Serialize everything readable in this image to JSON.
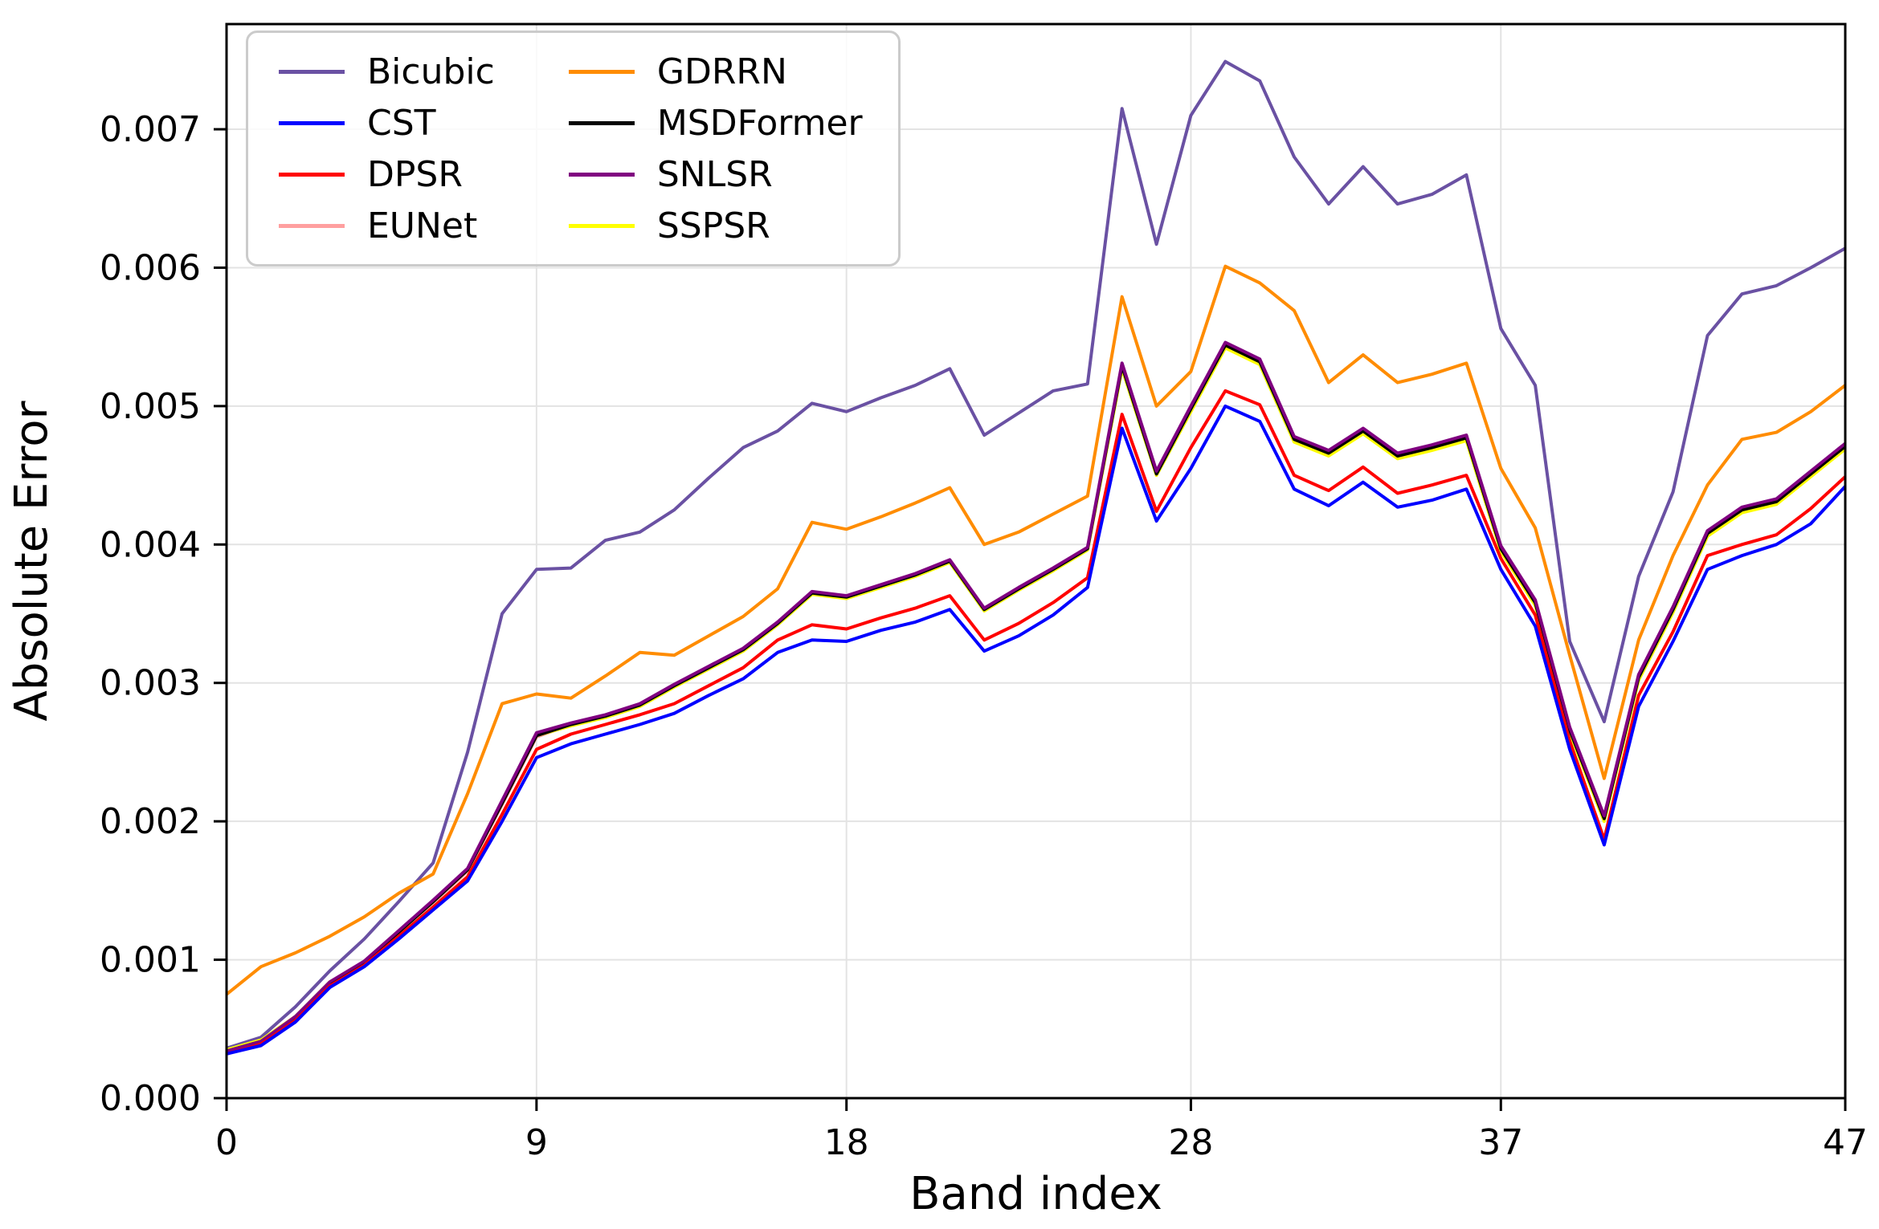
{
  "chart_data": {
    "type": "line",
    "title": "",
    "xlabel": "Band index",
    "ylabel": "Absolute Error",
    "xlim": [
      0,
      47
    ],
    "ylim": [
      0.0,
      0.00776
    ],
    "grid": true,
    "legend_position": "upper-left",
    "legend_columns": 2,
    "xticks": [
      0,
      9,
      18,
      28,
      37,
      47
    ],
    "xtick_labels": [
      "0",
      "9",
      "18",
      "28",
      "37",
      "47"
    ],
    "yticks": [
      0.0,
      0.001,
      0.002,
      0.003,
      0.004,
      0.005,
      0.006,
      0.007
    ],
    "ytick_labels": [
      "0.000",
      "0.001",
      "0.002",
      "0.003",
      "0.004",
      "0.005",
      "0.006",
      "0.007"
    ],
    "x": [
      0,
      1,
      2,
      3,
      4,
      5,
      6,
      7,
      8,
      9,
      10,
      11,
      12,
      13,
      14,
      15,
      16,
      17,
      18,
      19,
      20,
      21,
      22,
      23,
      24,
      25,
      26,
      27,
      28,
      29,
      30,
      31,
      32,
      33,
      34,
      35,
      36,
      37,
      38,
      39,
      40,
      41,
      42,
      43,
      44,
      45,
      46,
      47
    ],
    "series": [
      {
        "name": "Bicubic",
        "color": "#6a51a3",
        "values": [
          0.00036,
          0.00044,
          0.00066,
          0.00092,
          0.00115,
          0.00142,
          0.0017,
          0.0025,
          0.0035,
          0.00382,
          0.00383,
          0.00403,
          0.00409,
          0.00425,
          0.00448,
          0.0047,
          0.00482,
          0.00502,
          0.00496,
          0.00506,
          0.00515,
          0.00527,
          0.00479,
          0.00495,
          0.00511,
          0.00516,
          0.00715,
          0.00617,
          0.0071,
          0.00749,
          0.00735,
          0.0068,
          0.00646,
          0.00673,
          0.00646,
          0.00653,
          0.00667,
          0.00556,
          0.00515,
          0.0033,
          0.00272,
          0.00377,
          0.00438,
          0.00551,
          0.00581,
          0.00587,
          0.006,
          0.00614
        ]
      },
      {
        "name": "CST",
        "color": "#0000ff",
        "values": [
          0.00032,
          0.00038,
          0.00055,
          0.0008,
          0.00095,
          0.00115,
          0.00136,
          0.00157,
          0.002,
          0.00246,
          0.00256,
          0.00263,
          0.0027,
          0.00278,
          0.00291,
          0.00303,
          0.00322,
          0.00331,
          0.0033,
          0.00338,
          0.00344,
          0.00353,
          0.00323,
          0.00334,
          0.00349,
          0.00369,
          0.00484,
          0.00417,
          0.00455,
          0.005,
          0.00489,
          0.0044,
          0.00428,
          0.00445,
          0.00427,
          0.00432,
          0.0044,
          0.00382,
          0.00341,
          0.00252,
          0.00183,
          0.00283,
          0.0033,
          0.00382,
          0.00392,
          0.004,
          0.00415,
          0.00442
        ]
      },
      {
        "name": "DPSR",
        "color": "#ff0000",
        "values": [
          0.00032,
          0.00039,
          0.00056,
          0.00081,
          0.00096,
          0.00117,
          0.00138,
          0.0016,
          0.00205,
          0.00252,
          0.00263,
          0.0027,
          0.00277,
          0.00285,
          0.00298,
          0.00311,
          0.00331,
          0.00342,
          0.00339,
          0.00347,
          0.00354,
          0.00363,
          0.00331,
          0.00343,
          0.00358,
          0.00376,
          0.00494,
          0.00424,
          0.0047,
          0.00511,
          0.00501,
          0.0045,
          0.00439,
          0.00456,
          0.00437,
          0.00443,
          0.0045,
          0.0039,
          0.00349,
          0.00258,
          0.00187,
          0.00291,
          0.00337,
          0.00392,
          0.004,
          0.00407,
          0.00426,
          0.00449
        ]
      },
      {
        "name": "EUNet",
        "color": "#ff9f9f",
        "values": [
          0.00034,
          0.00041,
          0.00058,
          0.00083,
          0.00098,
          0.00119,
          0.00141,
          0.00164,
          0.00212,
          0.00261,
          0.0027,
          0.00276,
          0.00284,
          0.00298,
          0.00311,
          0.00324,
          0.00343,
          0.00365,
          0.00362,
          0.0037,
          0.00378,
          0.00388,
          0.00353,
          0.00368,
          0.00382,
          0.00397,
          0.00528,
          0.00451,
          0.00497,
          0.00543,
          0.00531,
          0.00475,
          0.00465,
          0.00481,
          0.00463,
          0.00469,
          0.00476,
          0.00396,
          0.00357,
          0.00265,
          0.00201,
          0.00303,
          0.00352,
          0.00407,
          0.00424,
          0.0043,
          0.0045,
          0.0047
        ]
      },
      {
        "name": "GDRRN",
        "color": "#ff8c00",
        "values": [
          0.00075,
          0.00095,
          0.00105,
          0.00117,
          0.00131,
          0.00148,
          0.00162,
          0.0022,
          0.00285,
          0.00292,
          0.00289,
          0.00305,
          0.00322,
          0.0032,
          0.00334,
          0.00348,
          0.00368,
          0.00416,
          0.00411,
          0.0042,
          0.0043,
          0.00441,
          0.004,
          0.00409,
          0.00422,
          0.00435,
          0.00579,
          0.005,
          0.00525,
          0.00601,
          0.00589,
          0.00569,
          0.00517,
          0.00537,
          0.00517,
          0.00523,
          0.00531,
          0.00455,
          0.00412,
          0.0032,
          0.00231,
          0.00331,
          0.00392,
          0.00443,
          0.00476,
          0.00481,
          0.00496,
          0.00515
        ]
      },
      {
        "name": "MSDFormer",
        "color": "#000000",
        "values": [
          0.00034,
          0.00041,
          0.00058,
          0.00083,
          0.00098,
          0.0012,
          0.00142,
          0.00165,
          0.00213,
          0.00262,
          0.0027,
          0.00276,
          0.00284,
          0.00298,
          0.00311,
          0.00324,
          0.00343,
          0.00365,
          0.00362,
          0.0037,
          0.00378,
          0.00388,
          0.00353,
          0.00368,
          0.00382,
          0.00397,
          0.00529,
          0.00451,
          0.00498,
          0.00544,
          0.00532,
          0.00476,
          0.00466,
          0.00482,
          0.00464,
          0.0047,
          0.00477,
          0.00397,
          0.00358,
          0.00266,
          0.00202,
          0.00304,
          0.00353,
          0.00408,
          0.00425,
          0.00431,
          0.00451,
          0.00471
        ]
      },
      {
        "name": "SNLSR",
        "color": "#800080",
        "values": [
          0.00034,
          0.00041,
          0.00059,
          0.00084,
          0.00099,
          0.00121,
          0.00143,
          0.00166,
          0.00215,
          0.00264,
          0.00271,
          0.00277,
          0.00285,
          0.00299,
          0.00312,
          0.00325,
          0.00344,
          0.00366,
          0.00363,
          0.00371,
          0.00379,
          0.00389,
          0.00354,
          0.00369,
          0.00383,
          0.00398,
          0.00531,
          0.00453,
          0.005,
          0.00546,
          0.00534,
          0.00478,
          0.00468,
          0.00484,
          0.00466,
          0.00472,
          0.00479,
          0.00399,
          0.0036,
          0.00268,
          0.00204,
          0.00306,
          0.00355,
          0.0041,
          0.00427,
          0.00433,
          0.00453,
          0.00473
        ]
      },
      {
        "name": "SSPSR",
        "color": "#ffff00",
        "values": [
          0.00035,
          0.00042,
          0.00059,
          0.00084,
          0.00098,
          0.0012,
          0.00142,
          0.00165,
          0.00213,
          0.00262,
          0.00269,
          0.00275,
          0.00283,
          0.00297,
          0.0031,
          0.00323,
          0.00342,
          0.00364,
          0.00361,
          0.00369,
          0.00377,
          0.00387,
          0.00352,
          0.00367,
          0.00381,
          0.00396,
          0.00527,
          0.0045,
          0.00496,
          0.00542,
          0.0053,
          0.00474,
          0.00464,
          0.0048,
          0.00462,
          0.00468,
          0.00475,
          0.00395,
          0.00356,
          0.00264,
          0.002,
          0.00302,
          0.00351,
          0.00406,
          0.00423,
          0.00429,
          0.00449,
          0.00469
        ]
      }
    ]
  }
}
